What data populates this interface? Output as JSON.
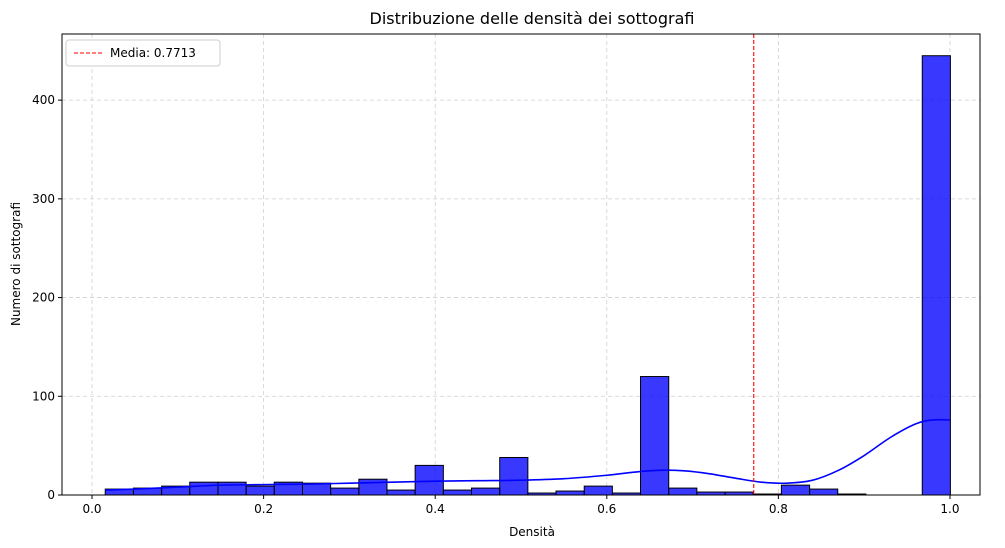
{
  "chart_data": {
    "type": "bar",
    "title": "Distribuzione delle densità dei sottografi",
    "xlabel": "Densità",
    "ylabel": "Numero di sottografi",
    "xlim": [
      -0.035,
      1.035
    ],
    "ylim": [
      0,
      467
    ],
    "x_ticks": [
      "0.0",
      "0.2",
      "0.4",
      "0.6",
      "0.8",
      "1.0"
    ],
    "x_tick_values": [
      0,
      0.2,
      0.4,
      0.6,
      0.8,
      1.0
    ],
    "y_ticks": [
      "0",
      "100",
      "200",
      "300",
      "400"
    ],
    "y_tick_values": [
      0,
      100,
      200,
      300,
      400
    ],
    "grid": true,
    "bar_color": "#0000ff",
    "kde_color": "#0000ff",
    "mean_line_color": "#ff0000",
    "bins": {
      "edges": [
        0.0154,
        0.0483,
        0.0811,
        0.1139,
        0.1468,
        0.1796,
        0.2124,
        0.2453,
        0.2781,
        0.311,
        0.3438,
        0.3766,
        0.4095,
        0.4423,
        0.4752,
        0.508,
        0.5408,
        0.5737,
        0.6065,
        0.6393,
        0.6722,
        0.705,
        0.7379,
        0.7707,
        0.8035,
        0.8364,
        0.8692,
        0.902,
        0.9349,
        0.9677,
        1.0005
      ],
      "counts": [
        6,
        7,
        9,
        13,
        13,
        9,
        13,
        12,
        7,
        16,
        5,
        30,
        5,
        7,
        38,
        2,
        4,
        9,
        2,
        120,
        7,
        3,
        3,
        1,
        10,
        6,
        1,
        0,
        0,
        445
      ]
    },
    "kde": {
      "x": [
        0.0154,
        0.05,
        0.1,
        0.15,
        0.2,
        0.25,
        0.3,
        0.35,
        0.4,
        0.45,
        0.5,
        0.55,
        0.6,
        0.63,
        0.66,
        0.69,
        0.72,
        0.75,
        0.78,
        0.81,
        0.84,
        0.87,
        0.9,
        0.93,
        0.96,
        0.98,
        1.0
      ],
      "y": [
        5,
        6,
        8,
        10,
        10.5,
        11,
        12,
        13,
        14,
        14.5,
        15,
        16.5,
        20,
        23,
        25,
        24.5,
        21.5,
        17,
        13,
        12,
        15,
        25,
        40,
        58,
        72,
        76,
        76
      ]
    },
    "mean": 0.7713,
    "legend": {
      "entries": [
        "Media: 0.7713"
      ],
      "position": "top-left"
    }
  }
}
